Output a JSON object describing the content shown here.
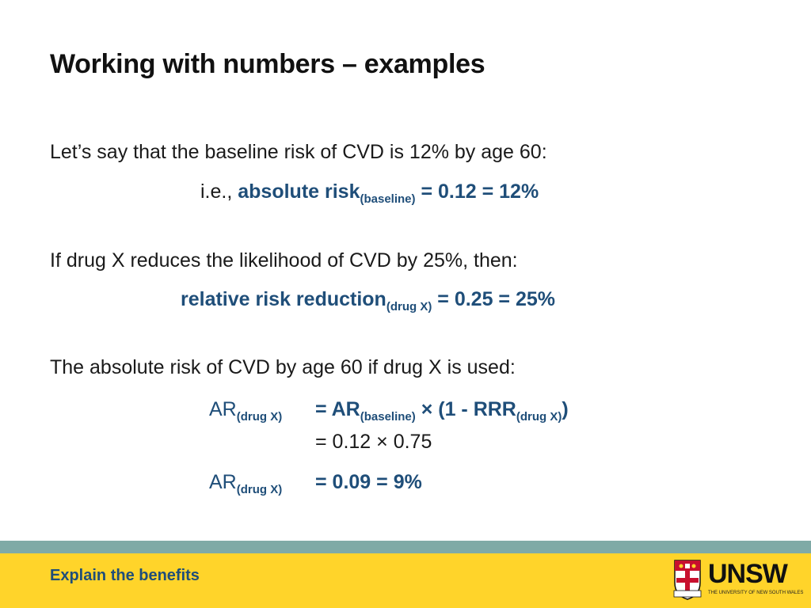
{
  "slide": {
    "title": "Working with numbers – examples",
    "para1": "Let’s say that the baseline risk of CVD is 12% by age 60:",
    "ie_prefix": "i.e., ",
    "ar_label": "absolute risk",
    "ar_sub": "(baseline)",
    "ar_value": " = 0.12 = 12%",
    "para2": "If drug X reduces the likelihood of CVD by 25%, then:",
    "rrr_label": "relative risk reduction",
    "rrr_sub": "(drug X)",
    "rrr_value": " = 0.25 = 25%",
    "para3": "The absolute risk of CVD by age 60 if drug X is used:",
    "eq1_lhs": "AR",
    "eq1_lhs_sub": "(drug X)",
    "eq1_rhs_a": "= AR",
    "eq1_rhs_sub1": "(baseline)",
    "eq1_rhs_b": " × (1 - RRR",
    "eq1_rhs_sub2": "(drug X)",
    "eq1_rhs_c": ")",
    "eq2": "= 0.12 × 0.75",
    "eq3_lhs": "AR",
    "eq3_lhs_sub": "(drug X)",
    "eq3_rhs": "= 0.09 = 9%"
  },
  "footer": {
    "text": "Explain the benefits",
    "logo_text": "UNSW",
    "logo_subtext": "THE UNIVERSITY OF NEW SOUTH WALES"
  },
  "colors": {
    "accent_blue": "#1f4e79",
    "footer_yellow": "#ffd42a",
    "footer_teal": "#7faaa6"
  }
}
